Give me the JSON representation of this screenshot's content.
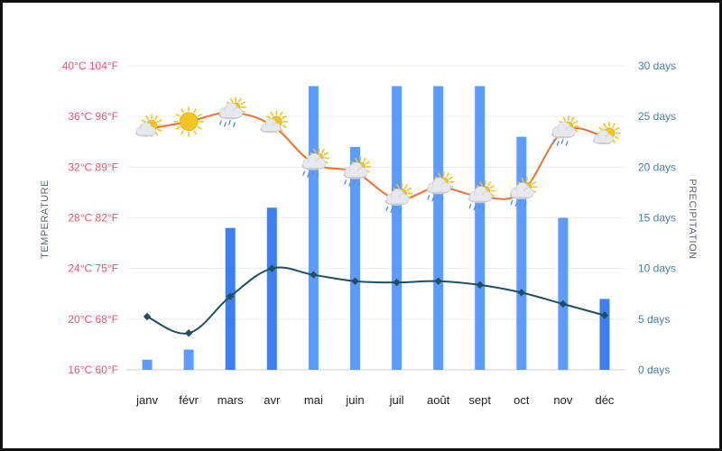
{
  "chart_data": {
    "type": "bar",
    "categories": [
      "janv",
      "févr",
      "mars",
      "avr",
      "mai",
      "juin",
      "juil",
      "août",
      "sept",
      "oct",
      "nov",
      "déc"
    ],
    "series": [
      {
        "type": "bar",
        "axis": "right",
        "values": [
          1,
          2,
          14,
          16,
          28,
          22,
          28,
          28,
          28,
          23,
          15,
          7
        ]
      },
      {
        "type": "line",
        "axis": "left",
        "values": [
          35,
          35.6,
          36.3,
          35.3,
          32.3,
          31.6,
          29.5,
          30.4,
          29.7,
          30,
          34.8,
          34.4
        ],
        "weather_icons": [
          "partly-sunny-icon",
          "sun-icon",
          "rain-cloud-icon",
          "partly-sunny-icon",
          "rain-cloud-icon",
          "rain-cloud-icon",
          "rain-cloud-icon",
          "rain-cloud-icon",
          "rain-cloud-icon",
          "rain-cloud-icon",
          "rain-cloud-icon",
          "partly-sunny-icon"
        ]
      },
      {
        "type": "line",
        "axis": "left",
        "values": [
          20.2,
          18.9,
          21.8,
          24,
          23.5,
          23,
          22.9,
          23,
          22.7,
          22.1,
          21.2,
          20.3
        ]
      }
    ],
    "y_left": {
      "title": "TEMPERATURE",
      "ylim": [
        16,
        40
      ],
      "ticks": [
        {
          "value": 40,
          "label": "40°C 104°F"
        },
        {
          "value": 36,
          "label": "36°C 96°F"
        },
        {
          "value": 32,
          "label": "32°C 89°F"
        },
        {
          "value": 28,
          "label": "28°C 82°F"
        },
        {
          "value": 24,
          "label": "24°C 75°F"
        },
        {
          "value": 20,
          "label": "20°C 68°F"
        },
        {
          "value": 16,
          "label": "16°C 60°F"
        }
      ]
    },
    "y_right": {
      "title": "PRECIPITATION",
      "ylim": [
        0,
        30
      ],
      "ticks": [
        {
          "value": 30,
          "label": "30 days"
        },
        {
          "value": 25,
          "label": "25 days"
        },
        {
          "value": 20,
          "label": "20 days"
        },
        {
          "value": 15,
          "label": "15 days"
        },
        {
          "value": 10,
          "label": "10 days"
        },
        {
          "value": 5,
          "label": "5 days"
        },
        {
          "value": 0,
          "label": "0 days"
        }
      ]
    },
    "grid": true,
    "colors": {
      "bar": "#5d9bff",
      "bar_dark": "#3d7ef0",
      "line_orange": "#f07033",
      "line_dark": "#1f4f63",
      "left_axis": "#ea5670",
      "right_axis": "#4a7ba9",
      "axis_title": "#5b6470",
      "x_axis": "#222222",
      "grid": "#e9eef2",
      "baseline": "#c9d2da",
      "sun": "#f6c41f",
      "cloud": "#e6e8ec",
      "rain": "#5b8fe0"
    }
  }
}
